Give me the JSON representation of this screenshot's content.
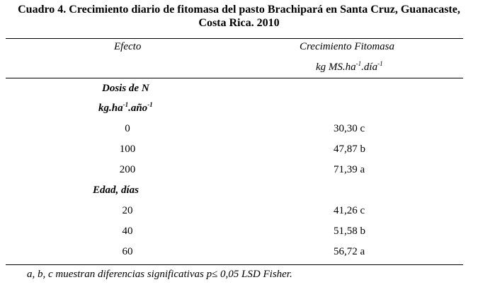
{
  "caption": {
    "line1": "Cuadro 4. Crecimiento diario de fitomasa del pasto Brachipará en Santa Cruz, Guanacaste,",
    "line2": "Costa Rica. 2010"
  },
  "header": {
    "col1": "Efecto",
    "col2": "Crecimiento Fitomasa",
    "col2_unit_base": "kg MS.ha",
    "col2_unit_exp1": "-1",
    "col2_unit_mid": ".día",
    "col2_unit_exp2": "-1"
  },
  "groups": [
    {
      "title": "Dosis de N",
      "unit_base": "kg.ha",
      "unit_exp1": "-1",
      "unit_mid": ".año",
      "unit_exp2": "-1",
      "rows": [
        {
          "level": "0",
          "value": "30,30 c"
        },
        {
          "level": "100",
          "value": "47,87 b"
        },
        {
          "level": "200",
          "value": "71,39 a"
        }
      ]
    },
    {
      "title": "Edad, días",
      "rows": [
        {
          "level": "20",
          "value": "41,26 c"
        },
        {
          "level": "40",
          "value": "51,58 b"
        },
        {
          "level": "60",
          "value": "56,72 a"
        }
      ]
    }
  ],
  "footnote": "a, b, c muestran diferencias significativas  p≤ 0,05 LSD Fisher."
}
